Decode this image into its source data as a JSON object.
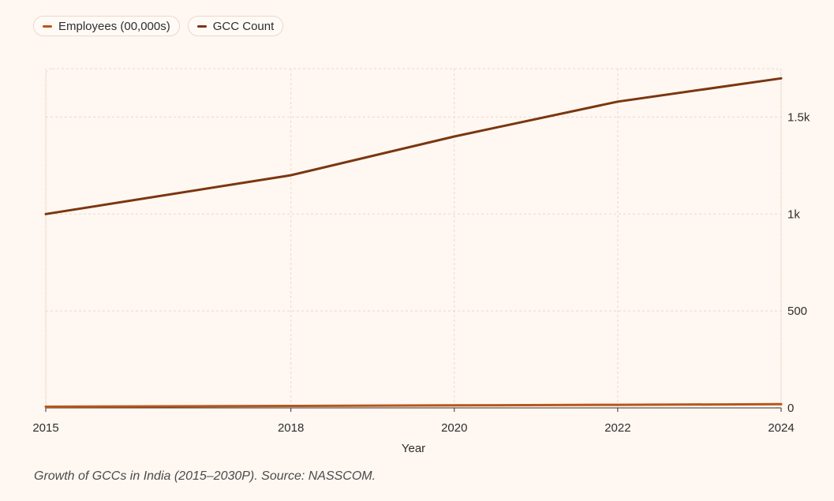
{
  "legend": {
    "items": [
      {
        "label": "Employees (00,000s)",
        "color": "#b8561a"
      },
      {
        "label": "GCC Count",
        "color": "#7a3610"
      }
    ]
  },
  "caption": "Growth of GCCs in India (2015–2030P). Source: NASSCOM.",
  "chart_data": {
    "type": "line",
    "xlabel": "Year",
    "ylabel": "",
    "x": [
      2015,
      2018,
      2020,
      2022,
      2024
    ],
    "xlim": [
      2015,
      2024
    ],
    "ylim": [
      0,
      1750
    ],
    "y_ticks": [
      0,
      500,
      1000,
      1500
    ],
    "y_tick_labels": [
      "0",
      "500",
      "1k",
      "1.5k"
    ],
    "y_axis_side": "right",
    "grid": true,
    "legend_position": "top-left",
    "series": [
      {
        "name": "Employees (00,000s)",
        "color": "#b8561a",
        "values": [
          6,
          10,
          13,
          16,
          19
        ]
      },
      {
        "name": "GCC Count",
        "color": "#7a3610",
        "values": [
          1000,
          1200,
          1400,
          1580,
          1700
        ]
      }
    ]
  }
}
